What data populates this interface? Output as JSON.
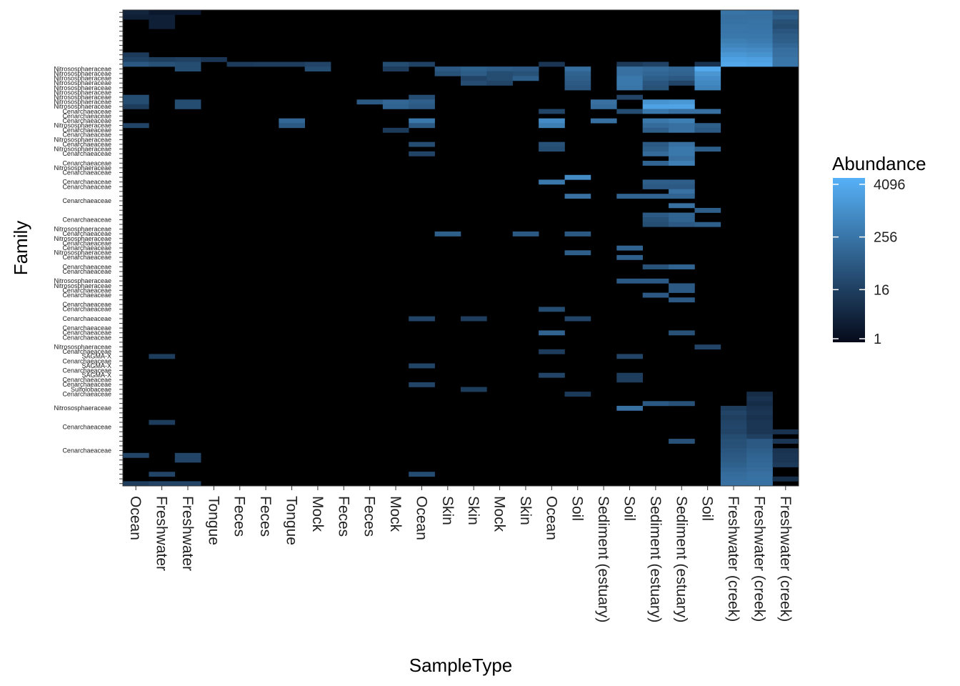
{
  "chart_data": {
    "type": "heatmap",
    "xlabel": "SampleType",
    "ylabel": "Family",
    "x": [
      "Ocean",
      "Freshwater",
      "Freshwater",
      "Tongue",
      "Feces",
      "Feces",
      "Tongue",
      "Mock",
      "Feces",
      "Feces",
      "Mock",
      "Ocean",
      "Skin",
      "Skin",
      "Mock",
      "Skin",
      "Ocean",
      "Soil",
      "Sediment (estuary)",
      "Soil",
      "Sediment (estuary)",
      "Sediment (estuary)",
      "Soil",
      "Freshwater (creek)",
      "Freshwater (creek)",
      "Freshwater (creek)"
    ],
    "y_labels": [
      {
        "row": 12,
        "label": "Nitrososphaeraceae"
      },
      {
        "row": 13,
        "label": "Nitrososphaeraceae"
      },
      {
        "row": 14,
        "label": "Nitrososphaeraceae"
      },
      {
        "row": 15,
        "label": "Nitrososphaeraceae"
      },
      {
        "row": 16,
        "label": "Nitrososphaeraceae"
      },
      {
        "row": 17,
        "label": "Nitrososphaeraceae"
      },
      {
        "row": 18,
        "label": "Nitrososphaeraceae"
      },
      {
        "row": 19,
        "label": "Nitrososphaeraceae"
      },
      {
        "row": 20,
        "label": "Nitrososphaeraceae"
      },
      {
        "row": 21,
        "label": "Cenarchaeaceae"
      },
      {
        "row": 22,
        "label": "Cenarchaeaceae"
      },
      {
        "row": 23,
        "label": "Cenarchaeaceae"
      },
      {
        "row": 24,
        "label": "Nitrososphaeraceae"
      },
      {
        "row": 25,
        "label": "Cenarchaeaceae"
      },
      {
        "row": 26,
        "label": "Cenarchaeaceae"
      },
      {
        "row": 27,
        "label": "Nitrososphaeraceae"
      },
      {
        "row": 28,
        "label": "Cenarchaeaceae"
      },
      {
        "row": 29,
        "label": "Nitrososphaeraceae"
      },
      {
        "row": 30,
        "label": "Cenarchaeaceae"
      },
      {
        "row": 32,
        "label": "Cenarchaeaceae"
      },
      {
        "row": 33,
        "label": "Nitrososphaeraceae"
      },
      {
        "row": 34,
        "label": "Cenarchaeaceae"
      },
      {
        "row": 36,
        "label": "Cenarchaeaceae"
      },
      {
        "row": 37,
        "label": "Cenarchaeaceae"
      },
      {
        "row": 40,
        "label": "Cenarchaeaceae"
      },
      {
        "row": 44,
        "label": "Cenarchaeaceae"
      },
      {
        "row": 46,
        "label": "Nitrososphaeraceae"
      },
      {
        "row": 47,
        "label": "Cenarchaeaceae"
      },
      {
        "row": 48,
        "label": "Nitrososphaeraceae"
      },
      {
        "row": 49,
        "label": "Cenarchaeaceae"
      },
      {
        "row": 50,
        "label": "Cenarchaeaceae"
      },
      {
        "row": 51,
        "label": "Nitrososphaeraceae"
      },
      {
        "row": 52,
        "label": "Cenarchaeaceae"
      },
      {
        "row": 54,
        "label": "Cenarchaeaceae"
      },
      {
        "row": 55,
        "label": "Cenarchaeaceae"
      },
      {
        "row": 57,
        "label": "Nitrososphaeraceae"
      },
      {
        "row": 58,
        "label": "Nitrososphaeraceae"
      },
      {
        "row": 59,
        "label": "Cenarchaeaceae"
      },
      {
        "row": 60,
        "label": "Cenarchaeaceae"
      },
      {
        "row": 62,
        "label": "Cenarchaeaceae"
      },
      {
        "row": 63,
        "label": "Cenarchaeaceae"
      },
      {
        "row": 65,
        "label": "Cenarchaeaceae"
      },
      {
        "row": 67,
        "label": "Cenarchaeaceae"
      },
      {
        "row": 68,
        "label": "Cenarchaeaceae"
      },
      {
        "row": 69,
        "label": "Cenarchaeaceae"
      },
      {
        "row": 71,
        "label": "Nitrososphaeraceae"
      },
      {
        "row": 72,
        "label": "Cenarchaeaceae"
      },
      {
        "row": 73,
        "label": "SAGMA-X"
      },
      {
        "row": 74,
        "label": "Cenarchaeaceae"
      },
      {
        "row": 75,
        "label": "SAGMA-X"
      },
      {
        "row": 76,
        "label": "Cenarchaeaceae"
      },
      {
        "row": 77,
        "label": "SAGMA-X"
      },
      {
        "row": 78,
        "label": "Cenarchaeaceae"
      },
      {
        "row": 79,
        "label": "Cenarchaeaceae"
      },
      {
        "row": 80,
        "label": "Sulfolobaceae"
      },
      {
        "row": 81,
        "label": "Cenarchaeaceae"
      },
      {
        "row": 84,
        "label": "Nitrososphaeraceae"
      },
      {
        "row": 88,
        "label": "Cenarchaeaceae"
      },
      {
        "row": 93,
        "label": "Cenarchaeaceae"
      }
    ],
    "colorbar": {
      "title": "Abundance",
      "ticks": [
        1,
        16,
        256,
        4096
      ],
      "scale": "log",
      "low_color": "#050a1a",
      "high_color": "#56b1f7"
    },
    "n_rows": 101,
    "background": "#000000",
    "cells": [
      [
        0,
        0,
        4
      ],
      [
        1,
        0,
        2
      ],
      [
        2,
        0,
        2
      ],
      [
        0,
        1,
        3
      ],
      [
        1,
        1,
        3
      ],
      [
        1,
        2,
        3
      ],
      [
        1,
        3,
        3
      ],
      [
        23,
        0,
        240
      ],
      [
        24,
        0,
        220
      ],
      [
        25,
        0,
        60
      ],
      [
        23,
        1,
        200
      ],
      [
        24,
        1,
        200
      ],
      [
        25,
        1,
        80
      ],
      [
        23,
        2,
        220
      ],
      [
        24,
        2,
        230
      ],
      [
        25,
        2,
        40
      ],
      [
        23,
        3,
        250
      ],
      [
        24,
        3,
        240
      ],
      [
        25,
        3,
        30
      ],
      [
        23,
        4,
        260
      ],
      [
        24,
        4,
        260
      ],
      [
        25,
        4,
        50
      ],
      [
        23,
        5,
        300
      ],
      [
        24,
        5,
        280
      ],
      [
        25,
        5,
        70
      ],
      [
        23,
        6,
        400
      ],
      [
        24,
        6,
        350
      ],
      [
        25,
        6,
        80
      ],
      [
        23,
        7,
        600
      ],
      [
        24,
        7,
        500
      ],
      [
        25,
        7,
        120
      ],
      [
        23,
        8,
        900
      ],
      [
        24,
        8,
        800
      ],
      [
        25,
        8,
        180
      ],
      [
        23,
        9,
        1500
      ],
      [
        24,
        9,
        1200
      ],
      [
        25,
        9,
        200
      ],
      [
        23,
        10,
        2500
      ],
      [
        24,
        10,
        2200
      ],
      [
        25,
        10,
        250
      ],
      [
        23,
        11,
        3500
      ],
      [
        24,
        11,
        3000
      ],
      [
        25,
        11,
        260
      ],
      [
        0,
        9,
        12
      ],
      [
        0,
        10,
        18
      ],
      [
        1,
        10,
        14
      ],
      [
        2,
        10,
        16
      ],
      [
        3,
        10,
        10
      ],
      [
        0,
        11,
        60
      ],
      [
        1,
        11,
        40
      ],
      [
        2,
        11,
        30
      ],
      [
        4,
        11,
        12
      ],
      [
        5,
        11,
        14
      ],
      [
        6,
        11,
        14
      ],
      [
        7,
        11,
        20
      ],
      [
        10,
        11,
        30
      ],
      [
        11,
        11,
        18
      ],
      [
        16,
        11,
        10
      ],
      [
        19,
        11,
        12
      ],
      [
        20,
        11,
        18
      ],
      [
        22,
        11,
        8
      ],
      [
        2,
        12,
        30
      ],
      [
        7,
        12,
        30
      ],
      [
        10,
        12,
        14
      ],
      [
        12,
        12,
        60
      ],
      [
        13,
        12,
        90
      ],
      [
        14,
        12,
        70
      ],
      [
        15,
        12,
        60
      ],
      [
        17,
        12,
        180
      ],
      [
        19,
        12,
        200
      ],
      [
        20,
        12,
        150
      ],
      [
        21,
        12,
        120
      ],
      [
        22,
        12,
        4000
      ],
      [
        12,
        13,
        40
      ],
      [
        13,
        13,
        70
      ],
      [
        14,
        13,
        30
      ],
      [
        15,
        13,
        40
      ],
      [
        17,
        13,
        100
      ],
      [
        19,
        13,
        200
      ],
      [
        20,
        13,
        120
      ],
      [
        21,
        13,
        100
      ],
      [
        22,
        13,
        1400
      ],
      [
        13,
        14,
        20
      ],
      [
        14,
        14,
        30
      ],
      [
        15,
        14,
        80
      ],
      [
        17,
        14,
        80
      ],
      [
        19,
        14,
        300
      ],
      [
        20,
        14,
        80
      ],
      [
        21,
        14,
        60
      ],
      [
        22,
        14,
        900
      ],
      [
        13,
        15,
        30
      ],
      [
        14,
        15,
        20
      ],
      [
        17,
        15,
        60
      ],
      [
        19,
        15,
        300
      ],
      [
        20,
        15,
        50
      ],
      [
        21,
        15,
        20
      ],
      [
        22,
        15,
        700
      ],
      [
        17,
        16,
        50
      ],
      [
        19,
        16,
        250
      ],
      [
        20,
        16,
        40
      ],
      [
        22,
        16,
        500
      ],
      [
        0,
        18,
        30
      ],
      [
        11,
        18,
        30
      ],
      [
        19,
        18,
        20
      ],
      [
        0,
        19,
        30
      ],
      [
        2,
        19,
        30
      ],
      [
        9,
        19,
        60
      ],
      [
        10,
        19,
        120
      ],
      [
        11,
        19,
        80
      ],
      [
        18,
        19,
        200
      ],
      [
        20,
        19,
        1200
      ],
      [
        21,
        19,
        1500
      ],
      [
        0,
        20,
        14
      ],
      [
        2,
        20,
        30
      ],
      [
        10,
        20,
        100
      ],
      [
        11,
        20,
        60
      ],
      [
        18,
        20,
        150
      ],
      [
        20,
        20,
        2500
      ],
      [
        21,
        20,
        3000
      ],
      [
        16,
        21,
        20
      ],
      [
        19,
        21,
        30
      ],
      [
        20,
        21,
        300
      ],
      [
        21,
        21,
        200
      ],
      [
        22,
        21,
        200
      ],
      [
        6,
        23,
        120
      ],
      [
        11,
        23,
        300
      ],
      [
        16,
        23,
        800
      ],
      [
        18,
        23,
        200
      ],
      [
        20,
        23,
        300
      ],
      [
        21,
        23,
        400
      ],
      [
        0,
        24,
        20
      ],
      [
        6,
        24,
        60
      ],
      [
        11,
        24,
        60
      ],
      [
        16,
        24,
        400
      ],
      [
        20,
        24,
        150
      ],
      [
        21,
        24,
        200
      ],
      [
        22,
        24,
        80
      ],
      [
        10,
        25,
        12
      ],
      [
        20,
        25,
        80
      ],
      [
        21,
        25,
        200
      ],
      [
        22,
        25,
        60
      ],
      [
        11,
        28,
        30
      ],
      [
        16,
        28,
        40
      ],
      [
        20,
        28,
        60
      ],
      [
        21,
        28,
        200
      ],
      [
        16,
        29,
        30
      ],
      [
        20,
        29,
        80
      ],
      [
        21,
        29,
        300
      ],
      [
        22,
        29,
        80
      ],
      [
        11,
        30,
        20
      ],
      [
        20,
        30,
        150
      ],
      [
        21,
        30,
        300
      ],
      [
        21,
        31,
        200
      ],
      [
        20,
        32,
        100
      ],
      [
        21,
        32,
        400
      ],
      [
        17,
        35,
        800
      ],
      [
        16,
        36,
        300
      ],
      [
        20,
        36,
        80
      ],
      [
        21,
        36,
        80
      ],
      [
        20,
        37,
        60
      ],
      [
        21,
        37,
        60
      ],
      [
        21,
        38,
        200
      ],
      [
        17,
        39,
        200
      ],
      [
        19,
        39,
        100
      ],
      [
        20,
        39,
        100
      ],
      [
        21,
        39,
        100
      ],
      [
        21,
        41,
        200
      ],
      [
        22,
        42,
        80
      ],
      [
        20,
        43,
        60
      ],
      [
        21,
        43,
        100
      ],
      [
        20,
        44,
        40
      ],
      [
        21,
        44,
        100
      ],
      [
        20,
        45,
        30
      ],
      [
        21,
        45,
        60
      ],
      [
        22,
        45,
        80
      ],
      [
        12,
        47,
        80
      ],
      [
        15,
        47,
        60
      ],
      [
        17,
        47,
        60
      ],
      [
        19,
        50,
        100
      ],
      [
        17,
        51,
        80
      ],
      [
        19,
        52,
        80
      ],
      [
        20,
        54,
        40
      ],
      [
        21,
        54,
        100
      ],
      [
        19,
        57,
        60
      ],
      [
        20,
        57,
        60
      ],
      [
        21,
        58,
        60
      ],
      [
        21,
        59,
        60
      ],
      [
        20,
        60,
        60
      ],
      [
        21,
        61,
        60
      ],
      [
        16,
        63,
        30
      ],
      [
        11,
        65,
        20
      ],
      [
        13,
        65,
        14
      ],
      [
        17,
        65,
        20
      ],
      [
        16,
        68,
        100
      ],
      [
        21,
        68,
        40
      ],
      [
        22,
        71,
        20
      ],
      [
        16,
        72,
        14
      ],
      [
        19,
        73,
        20
      ],
      [
        1,
        73,
        14
      ],
      [
        11,
        75,
        20
      ],
      [
        16,
        77,
        20
      ],
      [
        19,
        77,
        14
      ],
      [
        19,
        78,
        14
      ],
      [
        11,
        79,
        20
      ],
      [
        13,
        80,
        14
      ],
      [
        17,
        81,
        12
      ],
      [
        19,
        84,
        200
      ],
      [
        20,
        83,
        60
      ],
      [
        21,
        83,
        40
      ],
      [
        24,
        81,
        6
      ],
      [
        24,
        82,
        8
      ],
      [
        24,
        83,
        6
      ],
      [
        23,
        84,
        14
      ],
      [
        24,
        84,
        8
      ],
      [
        23,
        85,
        20
      ],
      [
        24,
        85,
        10
      ],
      [
        23,
        86,
        16
      ],
      [
        24,
        86,
        8
      ],
      [
        1,
        87,
        14
      ],
      [
        23,
        87,
        20
      ],
      [
        24,
        87,
        10
      ],
      [
        23,
        88,
        22
      ],
      [
        24,
        88,
        10
      ],
      [
        23,
        89,
        20
      ],
      [
        24,
        89,
        10
      ],
      [
        25,
        89,
        8
      ],
      [
        23,
        90,
        30
      ],
      [
        24,
        90,
        16
      ],
      [
        23,
        91,
        40
      ],
      [
        24,
        91,
        60
      ],
      [
        21,
        91,
        40
      ],
      [
        25,
        91,
        10
      ],
      [
        23,
        92,
        40
      ],
      [
        24,
        92,
        60
      ],
      [
        23,
        93,
        50
      ],
      [
        24,
        93,
        80
      ],
      [
        25,
        93,
        8
      ],
      [
        0,
        94,
        20
      ],
      [
        2,
        94,
        20
      ],
      [
        23,
        94,
        60
      ],
      [
        24,
        94,
        100
      ],
      [
        25,
        94,
        10
      ],
      [
        2,
        95,
        20
      ],
      [
        23,
        95,
        70
      ],
      [
        24,
        95,
        120
      ],
      [
        25,
        95,
        10
      ],
      [
        23,
        96,
        90
      ],
      [
        24,
        96,
        140
      ],
      [
        25,
        96,
        12
      ],
      [
        23,
        97,
        120
      ],
      [
        24,
        97,
        160
      ],
      [
        1,
        98,
        20
      ],
      [
        11,
        98,
        30
      ],
      [
        23,
        98,
        160
      ],
      [
        24,
        98,
        200
      ],
      [
        23,
        99,
        180
      ],
      [
        24,
        99,
        220
      ],
      [
        25,
        99,
        6
      ],
      [
        0,
        100,
        14
      ],
      [
        1,
        100,
        20
      ],
      [
        2,
        100,
        20
      ],
      [
        23,
        100,
        200
      ],
      [
        24,
        100,
        200
      ]
    ]
  }
}
